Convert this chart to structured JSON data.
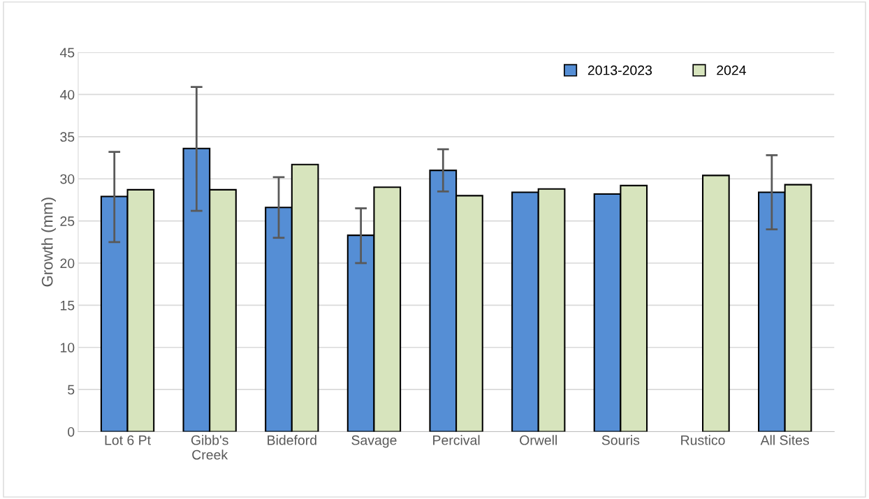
{
  "chart_data": {
    "type": "bar",
    "ylabel": "Growth (mm)",
    "categories": [
      "Lot 6 Pt",
      "Gibb's\nCreek",
      "Bideford",
      "Savage",
      "Percival",
      "Orwell",
      "Souris",
      "Rustico",
      "All Sites"
    ],
    "series": [
      {
        "name": "2013-2023",
        "color": "#558ed5",
        "values": [
          27.9,
          33.6,
          26.6,
          23.3,
          31.0,
          28.4,
          28.2,
          null,
          28.4
        ],
        "errors": [
          [
            22.5,
            33.2
          ],
          [
            26.2,
            40.9
          ],
          [
            23.0,
            30.2
          ],
          [
            20.0,
            26.5
          ],
          [
            28.5,
            33.5
          ],
          null,
          null,
          null,
          [
            24.0,
            32.8
          ]
        ]
      },
      {
        "name": "2024",
        "color": "#d7e4bd",
        "values": [
          28.7,
          28.7,
          31.7,
          29.0,
          28.0,
          28.8,
          29.2,
          30.4,
          29.3
        ]
      }
    ],
    "ylim": [
      0,
      45
    ],
    "yticks": [
      0,
      5,
      10,
      15,
      20,
      25,
      30,
      35,
      40,
      45
    ],
    "grid": "y",
    "legend": "top right"
  }
}
